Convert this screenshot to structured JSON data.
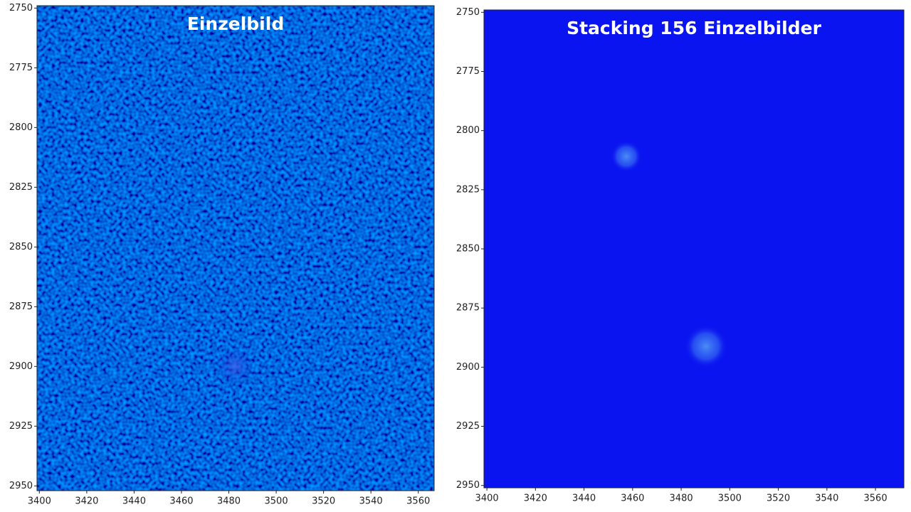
{
  "chart_data": [
    {
      "type": "image",
      "title": "Einzelbild",
      "xlim": [
        3399,
        3566.7
      ],
      "ylim": [
        2952,
        2749
      ],
      "xticks": [
        3400,
        3420,
        3440,
        3460,
        3480,
        3500,
        3520,
        3540,
        3560
      ],
      "yticks": [
        2750,
        2775,
        2800,
        2825,
        2850,
        2875,
        2900,
        2925,
        2950
      ]
    },
    {
      "type": "image",
      "title": "Stacking 156 Einzelbilder",
      "xlim": [
        3398.8,
        3571.7
      ],
      "ylim": [
        2951,
        2749
      ],
      "xticks": [
        3400,
        3420,
        3440,
        3460,
        3480,
        3500,
        3520,
        3540,
        3560
      ],
      "yticks": [
        2750,
        2775,
        2800,
        2825,
        2850,
        2875,
        2900,
        2925,
        2950
      ]
    }
  ]
}
